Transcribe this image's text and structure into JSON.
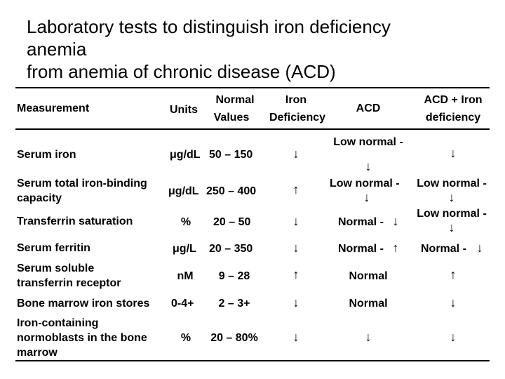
{
  "title": {
    "line1": "Laboratory tests to distinguish iron deficiency",
    "line2": "anemia",
    "line3": "from anemia of chronic disease (ACD)"
  },
  "header": {
    "measurement": "Measurement",
    "units": "Units",
    "normal_line1": "Normal",
    "normal_line2": "Values",
    "iron_line1": "Iron",
    "iron_line2": "Deficiency",
    "acd": "ACD",
    "acd_iron_line1": "ACD + Iron",
    "acd_iron_line2": "deficiency"
  },
  "rows": [
    {
      "measurement": [
        "Serum iron"
      ],
      "units": "μg/dL",
      "normal": "50 – 150",
      "iron": "↓",
      "acd_text": "Low normal -",
      "acd_arrow": "↓",
      "acd_iron": "↓"
    },
    {
      "measurement": [
        "Serum total iron-binding",
        "capacity"
      ],
      "units": "μg/dL",
      "normal": "250 – 400",
      "iron": "↑",
      "acd_text": "Low normal -",
      "acd_arrow": "↓",
      "acd_iron_text": "Low normal -",
      "acd_iron_arrow": "↓"
    },
    {
      "measurement": [
        "Transferrin saturation"
      ],
      "units": "%",
      "normal": "20 – 50",
      "iron": "↓",
      "acd_text": "Normal -",
      "acd_arrow": "↓",
      "acd_iron_text": "Low normal -",
      "acd_iron_arrow": "↓"
    },
    {
      "measurement": [
        "Serum ferritin"
      ],
      "units": "μg/L",
      "normal": "20 – 350",
      "iron": "↓",
      "acd_text": "Normal -",
      "acd_arrow": "↑",
      "acd_iron_text": "Normal -",
      "acd_iron_arrow": "↓"
    },
    {
      "measurement": [
        "Serum soluble",
        "transferrin receptor"
      ],
      "units": "nM",
      "normal": "9 – 28",
      "iron": "↑",
      "acd_text": "Normal",
      "acd_iron": "↑"
    },
    {
      "measurement": [
        "Bone marrow iron stores"
      ],
      "units": "0-4+",
      "normal": "2 – 3+",
      "iron": "↓",
      "acd_text": "Normal",
      "acd_iron": "↓"
    },
    {
      "measurement": [
        "Iron-containing",
        "normoblasts in the bone",
        "marrow"
      ],
      "units": "%",
      "normal": "20 – 80%",
      "iron": "↓",
      "acd_arrow": "↓",
      "acd_iron": "↓"
    }
  ]
}
